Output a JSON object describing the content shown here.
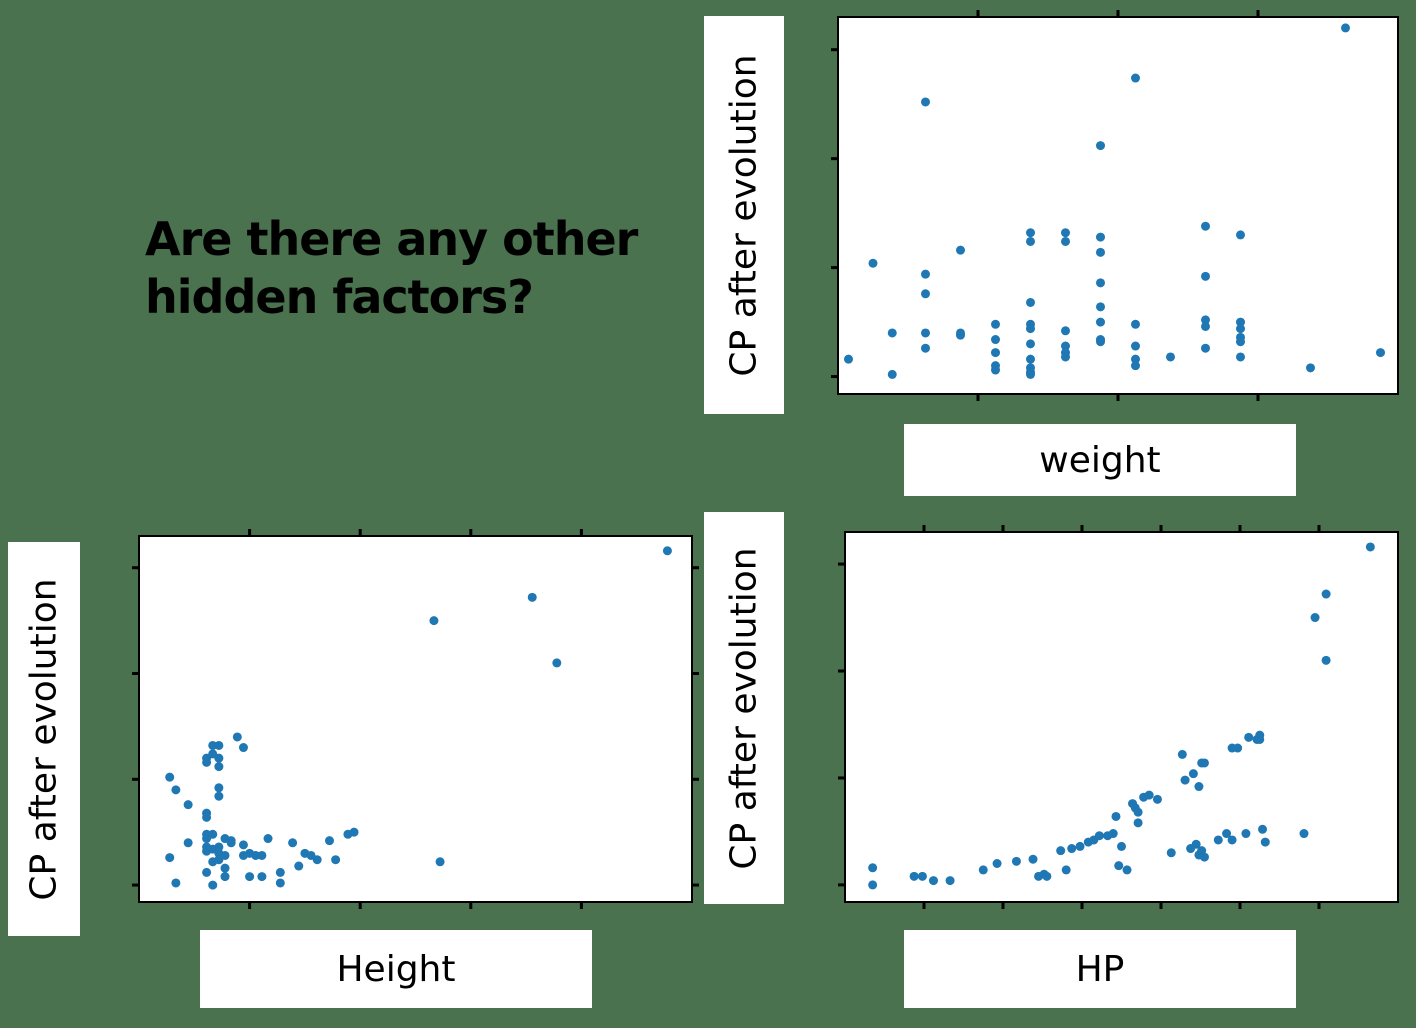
{
  "heading": "Are there any other hidden factors?",
  "colors": {
    "background": "#4a724e",
    "point": "#1f77b4",
    "frame": "#000000"
  },
  "chart_data": [
    {
      "type": "scatter",
      "id": "weight",
      "xlabel": "weight",
      "ylabel": "CP after evolution",
      "grid": false,
      "xticks": [],
      "yticks": [],
      "points": [
        [
          -3.4,
          80
        ],
        [
          -2.0,
          520
        ],
        [
          -0.9,
          200
        ],
        [
          -0.9,
          10
        ],
        [
          1.0,
          1260
        ],
        [
          1.0,
          470
        ],
        [
          1.0,
          380
        ],
        [
          1.0,
          200
        ],
        [
          1.0,
          130
        ],
        [
          3.0,
          580
        ],
        [
          3.0,
          200
        ],
        [
          3.0,
          190
        ],
        [
          5.0,
          240
        ],
        [
          5.0,
          170
        ],
        [
          5.0,
          110
        ],
        [
          5.0,
          50
        ],
        [
          5.0,
          30
        ],
        [
          7.0,
          660
        ],
        [
          7.0,
          620
        ],
        [
          7.0,
          340
        ],
        [
          7.0,
          240
        ],
        [
          7.0,
          220
        ],
        [
          7.0,
          150
        ],
        [
          7.0,
          80
        ],
        [
          7.0,
          40
        ],
        [
          7.0,
          20
        ],
        [
          7.0,
          10
        ],
        [
          9.0,
          660
        ],
        [
          9.0,
          620
        ],
        [
          9.0,
          210
        ],
        [
          9.0,
          140
        ],
        [
          9.0,
          110
        ],
        [
          9.0,
          90
        ],
        [
          11.0,
          1060
        ],
        [
          11.0,
          640
        ],
        [
          11.0,
          570
        ],
        [
          11.0,
          430
        ],
        [
          11.0,
          320
        ],
        [
          11.0,
          250
        ],
        [
          11.0,
          170
        ],
        [
          11.0,
          160
        ],
        [
          13.0,
          1370
        ],
        [
          13.0,
          240
        ],
        [
          13.0,
          140
        ],
        [
          13.0,
          80
        ],
        [
          13.0,
          50
        ],
        [
          15.0,
          90
        ],
        [
          17.0,
          690
        ],
        [
          17.0,
          460
        ],
        [
          17.0,
          260
        ],
        [
          17.0,
          230
        ],
        [
          17.0,
          130
        ],
        [
          19.0,
          650
        ],
        [
          19.0,
          250
        ],
        [
          19.0,
          220
        ],
        [
          19.0,
          180
        ],
        [
          19.0,
          160
        ],
        [
          19.0,
          90
        ],
        [
          23.0,
          40
        ],
        [
          25.0,
          1600
        ],
        [
          27.0,
          110
        ]
      ]
    },
    {
      "type": "scatter",
      "id": "height",
      "xlabel": "Height",
      "ylabel": "CP after evolution",
      "grid": false,
      "xticks": [],
      "yticks": [],
      "points": [
        [
          0.2,
          510
        ],
        [
          0.3,
          450
        ],
        [
          0.2,
          130
        ],
        [
          0.3,
          10
        ],
        [
          0.5,
          380
        ],
        [
          0.5,
          200
        ],
        [
          0.8,
          160
        ],
        [
          0.9,
          660
        ],
        [
          0.9,
          620
        ],
        [
          0.8,
          600
        ],
        [
          0.8,
          580
        ],
        [
          0.8,
          340
        ],
        [
          0.8,
          320
        ],
        [
          0.8,
          240
        ],
        [
          0.8,
          220
        ],
        [
          0.9,
          240
        ],
        [
          0.9,
          170
        ],
        [
          0.8,
          180
        ],
        [
          0.8,
          60
        ],
        [
          0.9,
          0
        ],
        [
          0.9,
          110
        ],
        [
          1.0,
          150
        ],
        [
          1.0,
          120
        ],
        [
          1.0,
          660
        ],
        [
          1.0,
          600
        ],
        [
          1.0,
          560
        ],
        [
          1.0,
          460
        ],
        [
          1.0,
          420
        ],
        [
          1.0,
          180
        ],
        [
          1.1,
          220
        ],
        [
          1.1,
          140
        ],
        [
          1.1,
          80
        ],
        [
          1.1,
          40
        ],
        [
          1.2,
          210
        ],
        [
          1.2,
          200
        ],
        [
          1.3,
          700
        ],
        [
          1.4,
          650
        ],
        [
          1.4,
          190
        ],
        [
          1.4,
          140
        ],
        [
          1.5,
          40
        ],
        [
          1.5,
          150
        ],
        [
          1.6,
          140
        ],
        [
          1.7,
          40
        ],
        [
          1.7,
          140
        ],
        [
          1.8,
          220
        ],
        [
          2.0,
          60
        ],
        [
          2.0,
          10
        ],
        [
          2.2,
          200
        ],
        [
          2.3,
          90
        ],
        [
          2.4,
          150
        ],
        [
          2.5,
          140
        ],
        [
          2.6,
          120
        ],
        [
          2.8,
          210
        ],
        [
          2.9,
          120
        ],
        [
          3.1,
          240
        ],
        [
          3.2,
          250
        ],
        [
          4.5,
          1250
        ],
        [
          4.6,
          110
        ],
        [
          6.1,
          1360
        ],
        [
          6.5,
          1050
        ],
        [
          8.3,
          1580
        ]
      ]
    },
    {
      "type": "scatter",
      "id": "hp",
      "xlabel": "HP",
      "ylabel": "CP after evolution",
      "grid": false,
      "xticks": [],
      "yticks": [],
      "points": [
        [
          10,
          80
        ],
        [
          10,
          0
        ],
        [
          25,
          40
        ],
        [
          28,
          40
        ],
        [
          32,
          20
        ],
        [
          38,
          20
        ],
        [
          50,
          70
        ],
        [
          55,
          100
        ],
        [
          62,
          110
        ],
        [
          68,
          120
        ],
        [
          70,
          40
        ],
        [
          72,
          50
        ],
        [
          73,
          40
        ],
        [
          78,
          160
        ],
        [
          80,
          70
        ],
        [
          82,
          170
        ],
        [
          85,
          180
        ],
        [
          88,
          200
        ],
        [
          90,
          210
        ],
        [
          92,
          230
        ],
        [
          95,
          230
        ],
        [
          97,
          240
        ],
        [
          98,
          320
        ],
        [
          99,
          90
        ],
        [
          100,
          180
        ],
        [
          102,
          70
        ],
        [
          104,
          380
        ],
        [
          105,
          360
        ],
        [
          106,
          340
        ],
        [
          106,
          290
        ],
        [
          108,
          410
        ],
        [
          110,
          420
        ],
        [
          113,
          400
        ],
        [
          118,
          150
        ],
        [
          122,
          610
        ],
        [
          123,
          490
        ],
        [
          125,
          170
        ],
        [
          126,
          520
        ],
        [
          127,
          190
        ],
        [
          128,
          460
        ],
        [
          128,
          140
        ],
        [
          129,
          570
        ],
        [
          129,
          160
        ],
        [
          130,
          130
        ],
        [
          130,
          570
        ],
        [
          135,
          210
        ],
        [
          138,
          240
        ],
        [
          140,
          640
        ],
        [
          140,
          210
        ],
        [
          142,
          640
        ],
        [
          145,
          240
        ],
        [
          146,
          690
        ],
        [
          149,
          680
        ],
        [
          150,
          700
        ],
        [
          150,
          680
        ],
        [
          151,
          260
        ],
        [
          152,
          200
        ],
        [
          166,
          240
        ],
        [
          170,
          1250
        ],
        [
          174,
          1360
        ],
        [
          174,
          1050
        ],
        [
          190,
          1580
        ]
      ]
    }
  ]
}
